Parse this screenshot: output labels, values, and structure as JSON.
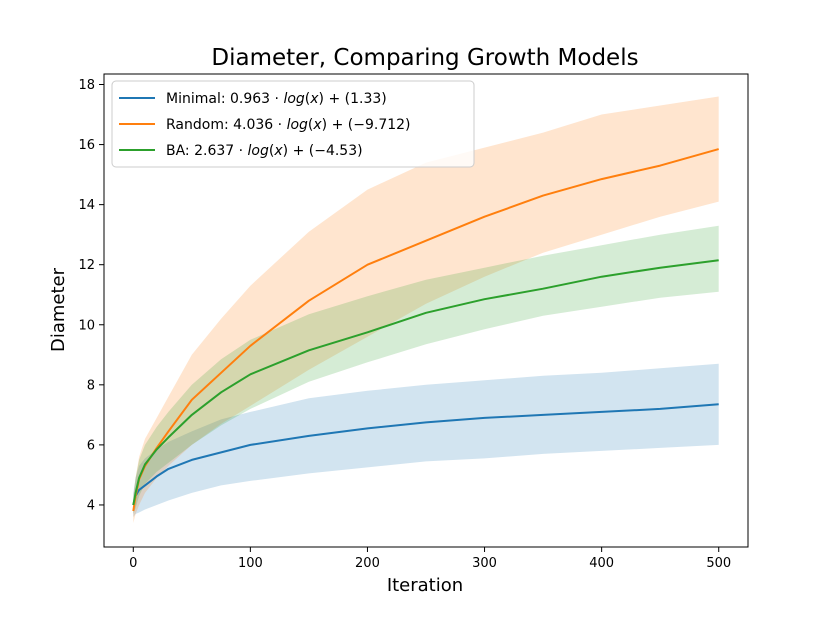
{
  "chart_data": {
    "type": "line",
    "title": "Diameter, Comparing Growth Models",
    "xlabel": "Iteration",
    "ylabel": "Diameter",
    "xlim": [
      -25,
      525
    ],
    "ylim": [
      2.6,
      18.35
    ],
    "xticks": [
      0,
      100,
      200,
      300,
      400,
      500
    ],
    "yticks": [
      4,
      6,
      8,
      10,
      12,
      14,
      16,
      18
    ],
    "grid": false,
    "legend_position": "top-left",
    "series": [
      {
        "name": "Minimal: 0.963 · log(x) + (1.33)",
        "legend_parts": [
          "Minimal: 0.963 · ",
          "log",
          "(",
          "x",
          ") + (1.33)"
        ],
        "color": "#1f77b4",
        "band_opacity": 0.2,
        "x": [
          0,
          2,
          5,
          10,
          20,
          30,
          50,
          75,
          100,
          150,
          200,
          250,
          300,
          350,
          400,
          450,
          500
        ],
        "y": [
          4.0,
          4.3,
          4.5,
          4.65,
          4.95,
          5.2,
          5.5,
          5.75,
          6.0,
          6.3,
          6.55,
          6.75,
          6.9,
          7.0,
          7.1,
          7.2,
          7.35
        ],
        "lower": [
          3.6,
          3.7,
          3.75,
          3.85,
          4.0,
          4.15,
          4.4,
          4.65,
          4.8,
          5.05,
          5.25,
          5.45,
          5.55,
          5.7,
          5.8,
          5.9,
          6.0
        ],
        "upper": [
          4.4,
          4.9,
          5.3,
          5.55,
          5.85,
          6.1,
          6.45,
          6.85,
          7.1,
          7.55,
          7.8,
          8.0,
          8.15,
          8.3,
          8.4,
          8.55,
          8.7
        ]
      },
      {
        "name": "Random: 4.036 · log(x) + (−9.712)",
        "legend_parts": [
          "Random: 4.036 · ",
          "log",
          "(",
          "x",
          ") + (−9.712)"
        ],
        "color": "#ff7f0e",
        "band_opacity": 0.2,
        "x": [
          0,
          2,
          5,
          10,
          20,
          30,
          50,
          75,
          100,
          150,
          200,
          250,
          300,
          350,
          400,
          450,
          500
        ],
        "y": [
          3.8,
          4.3,
          4.85,
          5.3,
          5.9,
          6.45,
          7.5,
          8.4,
          9.3,
          10.8,
          12.0,
          12.8,
          13.6,
          14.3,
          14.85,
          15.3,
          15.85
        ],
        "lower": [
          3.4,
          3.7,
          4.0,
          4.4,
          4.9,
          5.3,
          6.0,
          6.7,
          7.3,
          8.5,
          9.6,
          10.7,
          11.6,
          12.4,
          13.0,
          13.6,
          14.1
        ],
        "upper": [
          4.2,
          4.9,
          5.6,
          6.2,
          6.9,
          7.6,
          9.0,
          10.2,
          11.3,
          13.1,
          14.5,
          15.4,
          15.9,
          16.4,
          17.0,
          17.3,
          17.6
        ]
      },
      {
        "name": "BA: 2.637 · log(x) + (−4.53)",
        "legend_parts": [
          "BA: 2.637 · ",
          "log",
          "(",
          "x",
          ") + (−4.53)"
        ],
        "color": "#2ca02c",
        "band_opacity": 0.2,
        "x": [
          0,
          2,
          5,
          10,
          20,
          30,
          50,
          75,
          100,
          150,
          200,
          250,
          300,
          350,
          400,
          450,
          500
        ],
        "y": [
          4.0,
          4.4,
          4.9,
          5.35,
          5.85,
          6.25,
          7.0,
          7.75,
          8.35,
          9.15,
          9.75,
          10.4,
          10.85,
          11.2,
          11.6,
          11.9,
          12.15
        ],
        "lower": [
          3.7,
          3.9,
          4.3,
          4.7,
          5.1,
          5.4,
          6.0,
          6.65,
          7.2,
          8.1,
          8.75,
          9.35,
          9.85,
          10.3,
          10.6,
          10.9,
          11.1
        ],
        "upper": [
          4.3,
          4.9,
          5.5,
          6.0,
          6.6,
          7.1,
          8.0,
          8.85,
          9.5,
          10.35,
          10.95,
          11.5,
          11.9,
          12.3,
          12.65,
          13.0,
          13.3
        ]
      }
    ]
  }
}
